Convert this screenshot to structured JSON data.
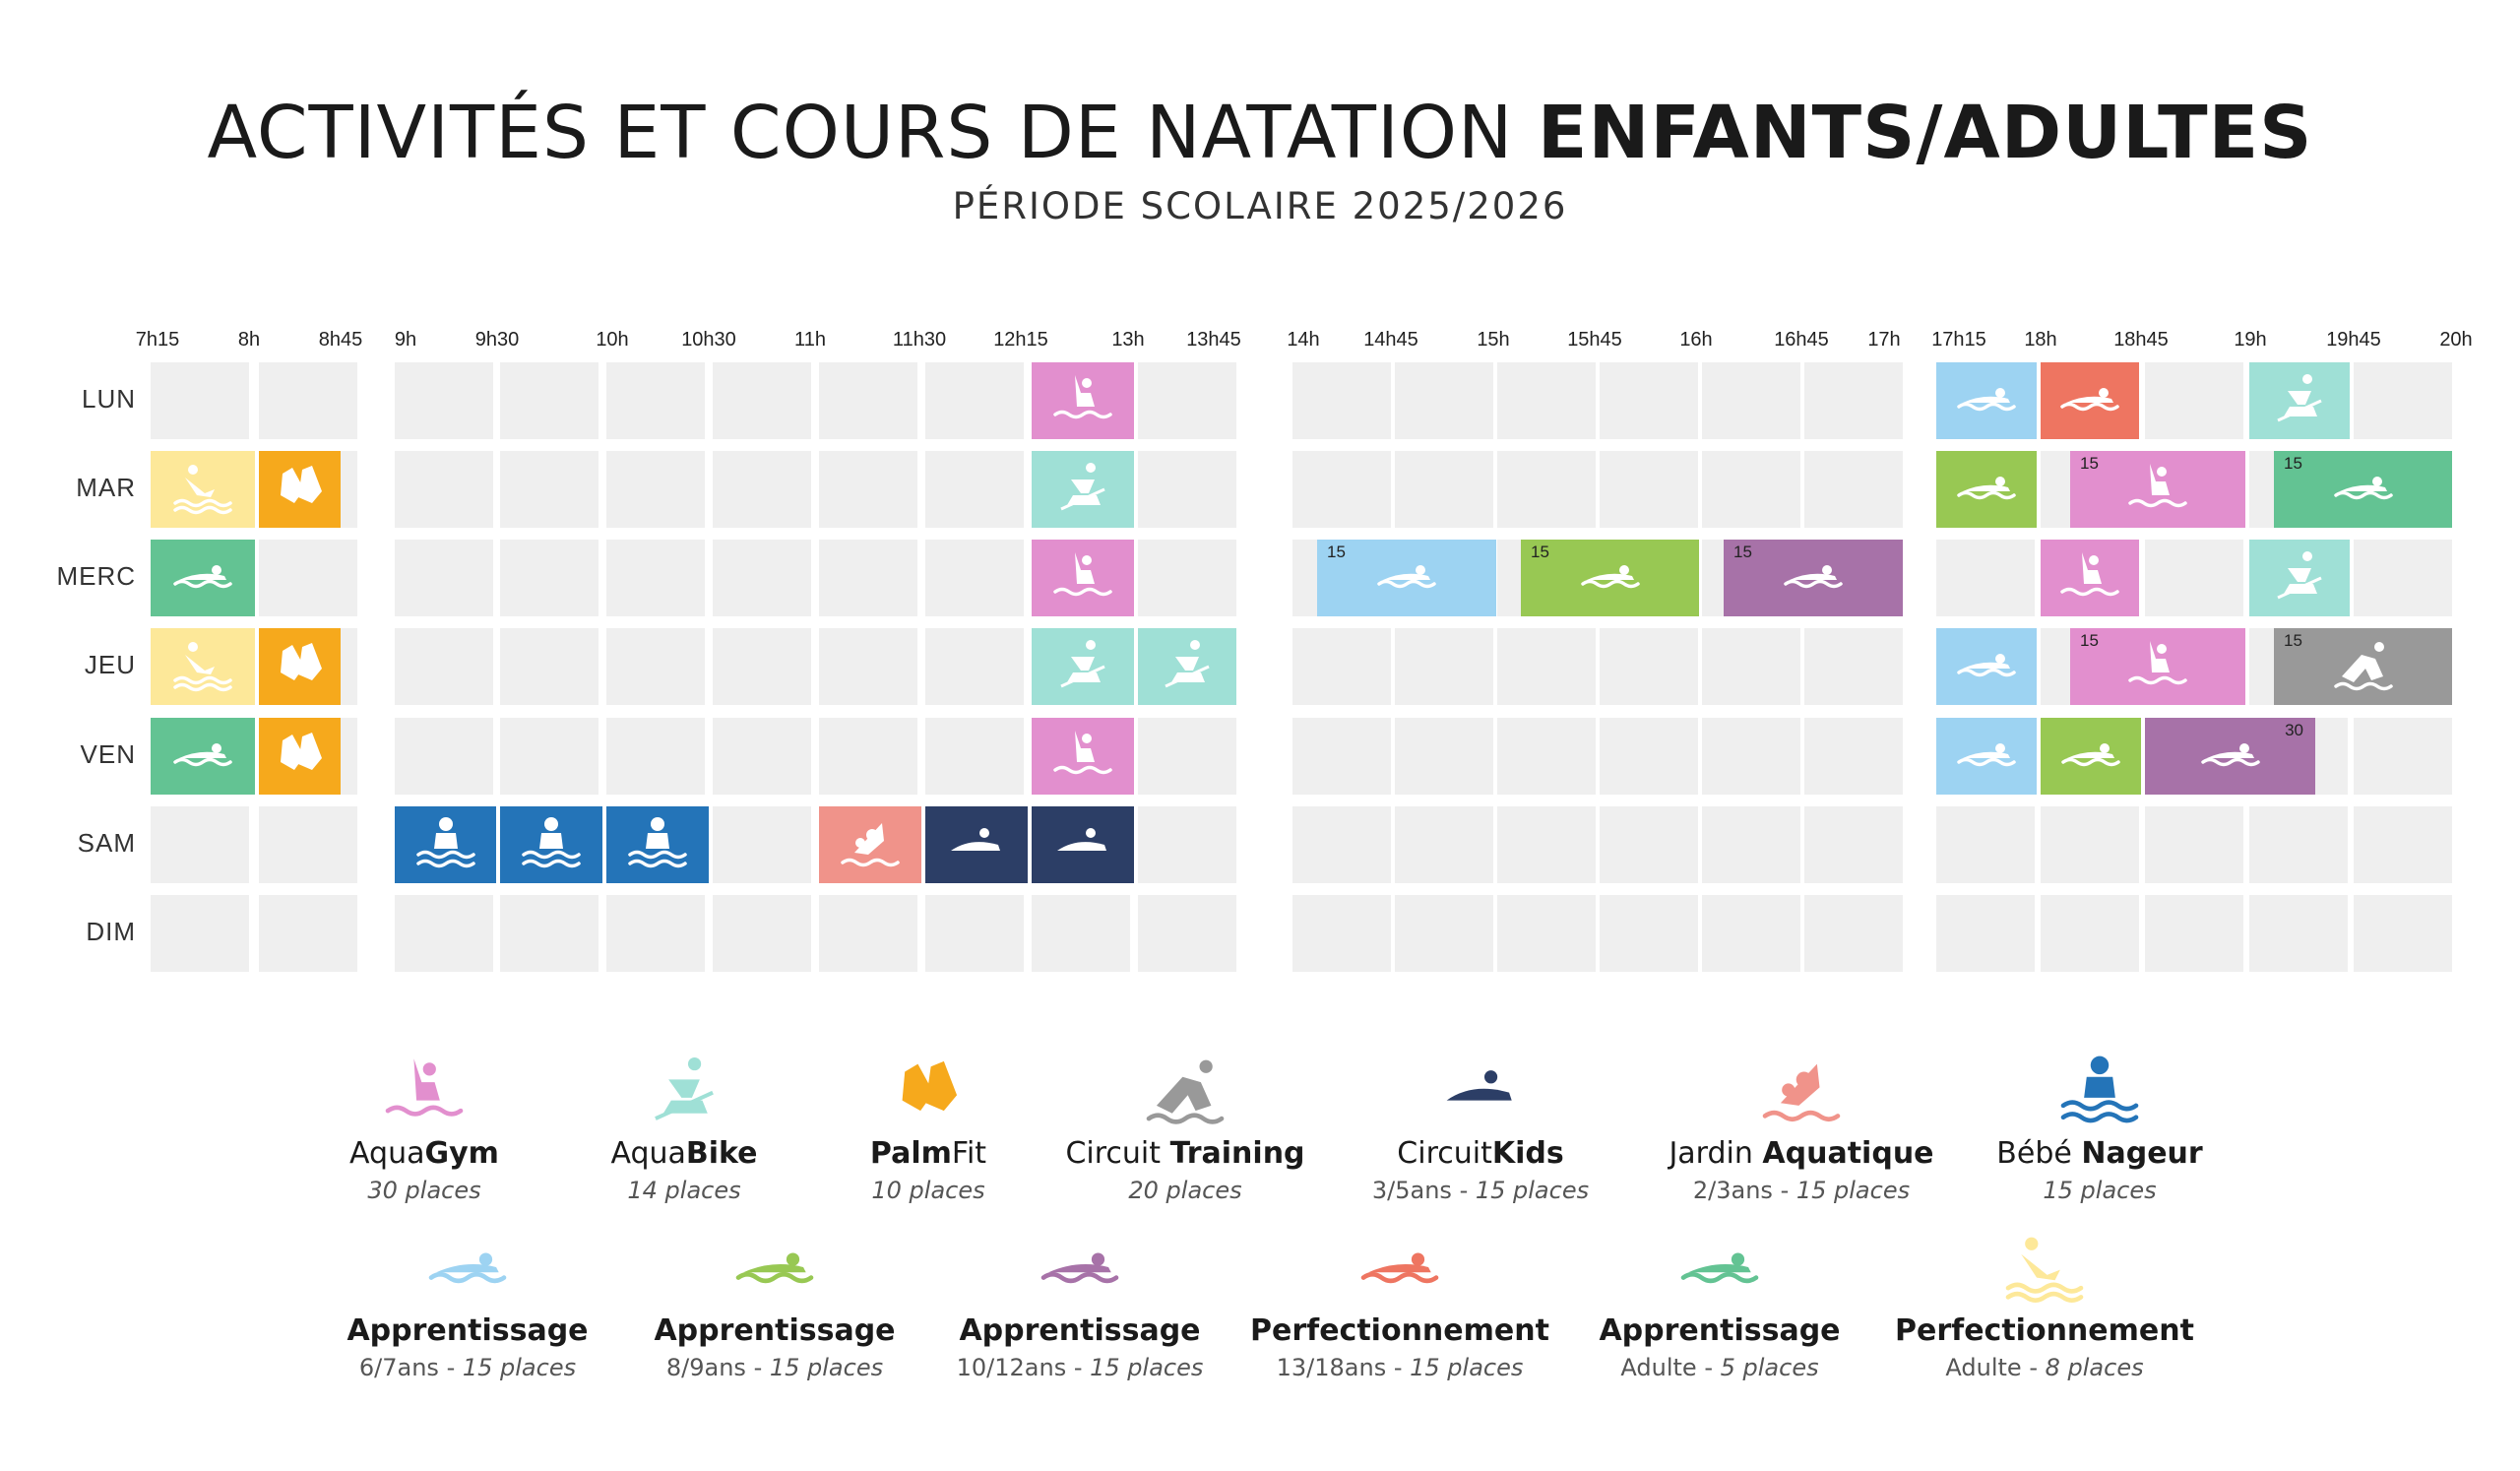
{
  "header": {
    "title_prefix": "ACTIVITÉS ET COURS DE NATATION ",
    "title_bold": "ENFANTS/ADULTES",
    "subtitle": "PÉRIODE SCOLAIRE 2025/2026"
  },
  "time_labels": [
    "7h15",
    "8h",
    "8h45",
    "9h",
    "9h30",
    "10h",
    "10h30",
    "11h",
    "11h30",
    "12h15",
    "13h",
    "13h45",
    "14h",
    "14h45",
    "15h",
    "15h45",
    "16h",
    "16h45",
    "17h",
    "17h15",
    "18h",
    "18h45",
    "19h",
    "19h45",
    "20h"
  ],
  "days": [
    "LUN",
    "MAR",
    "MERC",
    "JEU",
    "VEN",
    "SAM",
    "DIM"
  ],
  "colors": {
    "aquagym": "#e28fce",
    "aquabike": "#9fe0d6",
    "palmfit": "#f6a91c",
    "circuit_training": "#999999",
    "circuit_kids": "#2c3e66",
    "jardin": "#f0938a",
    "bebe": "#2474b8",
    "app67": "#9dd3f2",
    "app89": "#98c853",
    "app1012": "#a772a8",
    "perf1318": "#ee7561",
    "app_adulte": "#63c393",
    "perf_adulte": "#fde899",
    "empty": "#efefef"
  },
  "sessions": [
    {
      "day": "LUN",
      "activity": "aquagym",
      "start": "12h15",
      "end": "13h"
    },
    {
      "day": "LUN",
      "activity": "app67",
      "start": "17h15",
      "end": "18h"
    },
    {
      "day": "LUN",
      "activity": "perf1318",
      "start": "18h",
      "end": "18h45"
    },
    {
      "day": "LUN",
      "activity": "aquabike",
      "start": "19h",
      "end": "19h45"
    },
    {
      "day": "MAR",
      "activity": "perf_adulte",
      "start": "7h15",
      "end": "8h"
    },
    {
      "day": "MAR",
      "activity": "palmfit",
      "start": "8h",
      "end": "8h45"
    },
    {
      "day": "MAR",
      "activity": "aquabike",
      "start": "12h15",
      "end": "13h"
    },
    {
      "day": "MAR",
      "activity": "app89",
      "start": "17h15",
      "end": "18h"
    },
    {
      "day": "MAR",
      "activity": "aquagym",
      "start": "18h",
      "end": "19h",
      "count": "15"
    },
    {
      "day": "MAR",
      "activity": "app_adulte",
      "start": "19h",
      "end": "20h",
      "count": "15"
    },
    {
      "day": "MERC",
      "activity": "app_adulte",
      "start": "7h15",
      "end": "8h"
    },
    {
      "day": "MERC",
      "activity": "aquagym",
      "start": "12h15",
      "end": "13h"
    },
    {
      "day": "MERC",
      "activity": "app67",
      "start": "14h",
      "end": "15h",
      "count": "15"
    },
    {
      "day": "MERC",
      "activity": "app89",
      "start": "15h",
      "end": "16h",
      "count": "15"
    },
    {
      "day": "MERC",
      "activity": "app1012",
      "start": "16h",
      "end": "17h",
      "count": "15"
    },
    {
      "day": "MERC",
      "activity": "aquagym",
      "start": "18h",
      "end": "18h45"
    },
    {
      "day": "MERC",
      "activity": "aquabike",
      "start": "19h",
      "end": "19h45"
    },
    {
      "day": "JEU",
      "activity": "perf_adulte",
      "start": "7h15",
      "end": "8h"
    },
    {
      "day": "JEU",
      "activity": "palmfit",
      "start": "8h",
      "end": "8h45"
    },
    {
      "day": "JEU",
      "activity": "aquabike",
      "start": "12h15",
      "end": "13h"
    },
    {
      "day": "JEU",
      "activity": "aquabike",
      "start": "13h",
      "end": "13h45"
    },
    {
      "day": "JEU",
      "activity": "app67",
      "start": "17h15",
      "end": "18h"
    },
    {
      "day": "JEU",
      "activity": "aquagym",
      "start": "18h",
      "end": "19h",
      "count": "15"
    },
    {
      "day": "JEU",
      "activity": "circuit_training",
      "start": "19h",
      "end": "20h",
      "count": "15"
    },
    {
      "day": "VEN",
      "activity": "app_adulte",
      "start": "7h15",
      "end": "8h"
    },
    {
      "day": "VEN",
      "activity": "palmfit",
      "start": "8h",
      "end": "8h45"
    },
    {
      "day": "VEN",
      "activity": "aquagym",
      "start": "12h15",
      "end": "13h"
    },
    {
      "day": "VEN",
      "activity": "app67",
      "start": "17h15",
      "end": "18h"
    },
    {
      "day": "VEN",
      "activity": "app89",
      "start": "18h",
      "end": "18h45"
    },
    {
      "day": "VEN",
      "activity": "app1012",
      "start": "18h45",
      "end": "19h45",
      "count": "30"
    },
    {
      "day": "SAM",
      "activity": "bebe",
      "start": "9h",
      "end": "9h30"
    },
    {
      "day": "SAM",
      "activity": "bebe",
      "start": "9h30",
      "end": "10h"
    },
    {
      "day": "SAM",
      "activity": "bebe",
      "start": "10h",
      "end": "10h30"
    },
    {
      "day": "SAM",
      "activity": "jardin",
      "start": "11h",
      "end": "11h30"
    },
    {
      "day": "SAM",
      "activity": "circuit_kids",
      "start": "11h30",
      "end": "12h15"
    },
    {
      "day": "SAM",
      "activity": "circuit_kids",
      "start": "12h15",
      "end": "13h"
    }
  ],
  "legend_row1": [
    {
      "key": "aquagym",
      "light": "Aqua",
      "bold": "Gym",
      "after": "",
      "sub_plain": "",
      "sub_italic": "30 places"
    },
    {
      "key": "aquabike",
      "light": "Aqua",
      "bold": "Bike",
      "after": "",
      "sub_plain": "",
      "sub_italic": "14 places"
    },
    {
      "key": "palmfit",
      "light": "",
      "bold": "Palm",
      "after": "Fit",
      "sub_plain": "",
      "sub_italic": "10 places"
    },
    {
      "key": "circuit_training",
      "light": "Circuit ",
      "bold": "Training",
      "after": "",
      "sub_plain": "",
      "sub_italic": "20 places"
    },
    {
      "key": "circuit_kids",
      "light": "Circuit",
      "bold": "Kids",
      "after": "",
      "sub_plain": "3/5ans - ",
      "sub_italic": "15 places"
    },
    {
      "key": "jardin",
      "light": "Jardin ",
      "bold": "Aquatique",
      "after": "",
      "sub_plain": "2/3ans - ",
      "sub_italic": "15 places"
    },
    {
      "key": "bebe",
      "light": "Bébé ",
      "bold": "Nageur",
      "after": "",
      "sub_plain": "",
      "sub_italic": "15 places"
    }
  ],
  "legend_row2": [
    {
      "key": "app67",
      "light": "",
      "bold": "Apprentissage",
      "after": "",
      "sub_plain": "6/7ans - ",
      "sub_italic": "15 places"
    },
    {
      "key": "app89",
      "light": "",
      "bold": "Apprentissage",
      "after": "",
      "sub_plain": "8/9ans - ",
      "sub_italic": "15 places"
    },
    {
      "key": "app1012",
      "light": "",
      "bold": "Apprentissage",
      "after": "",
      "sub_plain": "10/12ans - ",
      "sub_italic": "15 places"
    },
    {
      "key": "perf1318",
      "light": "",
      "bold": "Perfectionnement",
      "after": "",
      "sub_plain": "13/18ans - ",
      "sub_italic": "15 places"
    },
    {
      "key": "app_adulte",
      "light": "",
      "bold": "Apprentissage",
      "after": "",
      "sub_plain": "Adulte - ",
      "sub_italic": "5 places"
    },
    {
      "key": "perf_adulte",
      "light": "",
      "bold": "Perfectionnement",
      "after": "",
      "sub_plain": "Adulte - ",
      "sub_italic": "8 places"
    }
  ]
}
